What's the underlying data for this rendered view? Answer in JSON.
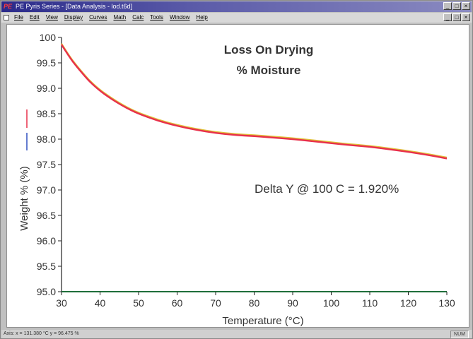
{
  "window": {
    "logo": "PE",
    "title": "PE Pyris Series - [Data Analysis - lod.t6d]",
    "controls": [
      "_",
      "□",
      "×"
    ]
  },
  "menu": {
    "items": [
      "File",
      "Edit",
      "View",
      "Display",
      "Curves",
      "Math",
      "Calc",
      "Tools",
      "Window",
      "Help"
    ]
  },
  "status": {
    "coords": "Axis: x = 131.380 °C  y = 96.475 %",
    "mode": "NUM"
  },
  "colors": {
    "curve": "#e8304a",
    "curve_shadow": "#e0c23a",
    "axis": "#222222",
    "baseline": "#1f6e3a",
    "legend_red": "#e8304a",
    "legend_blue": "#3050c0"
  },
  "chart_data": {
    "type": "line",
    "title": "Loss On Drying",
    "subtitle": "% Moisture",
    "xlabel": "Temperature (°C)",
    "ylabel": "Weight % (%)",
    "xlim": [
      30,
      130
    ],
    "ylim": [
      95.0,
      100
    ],
    "xticks": [
      30,
      40,
      50,
      60,
      70,
      80,
      90,
      100,
      110,
      120,
      130
    ],
    "yticks": [
      95.0,
      95.5,
      96.0,
      96.5,
      97.0,
      97.5,
      98.0,
      98.5,
      99.0,
      99.5,
      100
    ],
    "ytick_labels": [
      "95.0",
      "95.5",
      "96.0",
      "96.5",
      "97.0",
      "97.5",
      "98.0",
      "98.5",
      "99.0",
      "99.5",
      "100"
    ],
    "annotation": "Delta Y @ 100 C = 1.920%",
    "grid": false,
    "series": [
      {
        "x": [
          30,
          32,
          34,
          36,
          38,
          40,
          42,
          44,
          46,
          48,
          50,
          55,
          60,
          65,
          70,
          75,
          80,
          85,
          90,
          95,
          100,
          105,
          110,
          115,
          120,
          125,
          130
        ],
        "values": [
          99.86,
          99.62,
          99.42,
          99.24,
          99.08,
          98.95,
          98.84,
          98.74,
          98.65,
          98.57,
          98.5,
          98.36,
          98.26,
          98.18,
          98.12,
          98.08,
          98.06,
          98.03,
          98.0,
          97.96,
          97.92,
          97.88,
          97.85,
          97.8,
          97.75,
          97.69,
          97.62
        ]
      }
    ]
  }
}
